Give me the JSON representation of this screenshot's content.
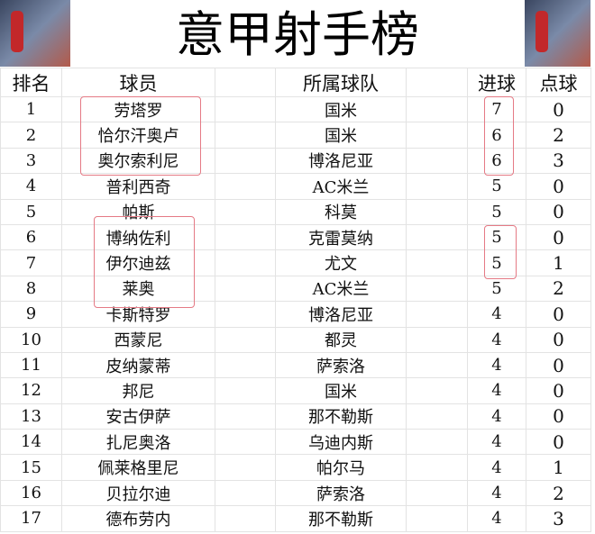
{
  "title": "意甲射手榜",
  "header": {
    "rank": "排名",
    "player": "球员",
    "team": "所属球队",
    "goals": "进球",
    "penalties": "点球"
  },
  "rows": [
    {
      "rank": "1",
      "player": "劳塔罗",
      "team": "国米",
      "goals": "7",
      "penalties": "0"
    },
    {
      "rank": "2",
      "player": "恰尔汗奥卢",
      "team": "国米",
      "goals": "6",
      "penalties": "2"
    },
    {
      "rank": "3",
      "player": "奥尔索利尼",
      "team": "博洛尼亚",
      "goals": "6",
      "penalties": "3"
    },
    {
      "rank": "4",
      "player": "普利西奇",
      "team": "AC米兰",
      "goals": "5",
      "penalties": "0"
    },
    {
      "rank": "5",
      "player": "帕斯",
      "team": "科莫",
      "goals": "5",
      "penalties": "0"
    },
    {
      "rank": "6",
      "player": "博纳佐利",
      "team": "克雷莫纳",
      "goals": "5",
      "penalties": "0"
    },
    {
      "rank": "7",
      "player": "伊尔迪兹",
      "team": "尤文",
      "goals": "5",
      "penalties": "1"
    },
    {
      "rank": "8",
      "player": "莱奥",
      "team": "AC米兰",
      "goals": "5",
      "penalties": "2"
    },
    {
      "rank": "9",
      "player": "卡斯特罗",
      "team": "博洛尼亚",
      "goals": "4",
      "penalties": "0"
    },
    {
      "rank": "10",
      "player": "西蒙尼",
      "team": "都灵",
      "goals": "4",
      "penalties": "0"
    },
    {
      "rank": "11",
      "player": "皮纳蒙蒂",
      "team": "萨索洛",
      "goals": "4",
      "penalties": "0"
    },
    {
      "rank": "12",
      "player": "邦尼",
      "team": "国米",
      "goals": "4",
      "penalties": "0"
    },
    {
      "rank": "13",
      "player": "安古伊萨",
      "team": "那不勒斯",
      "goals": "4",
      "penalties": "0"
    },
    {
      "rank": "14",
      "player": "扎尼奥洛",
      "team": "乌迪内斯",
      "goals": "4",
      "penalties": "0"
    },
    {
      "rank": "15",
      "player": "佩莱格里尼",
      "team": "帕尔马",
      "goals": "4",
      "penalties": "1"
    },
    {
      "rank": "16",
      "player": "贝拉尔迪",
      "team": "萨索洛",
      "goals": "4",
      "penalties": "2"
    },
    {
      "rank": "17",
      "player": "德布劳内",
      "team": "那不勒斯",
      "goals": "4",
      "penalties": "3"
    }
  ],
  "highlight_color": "#e57a85"
}
